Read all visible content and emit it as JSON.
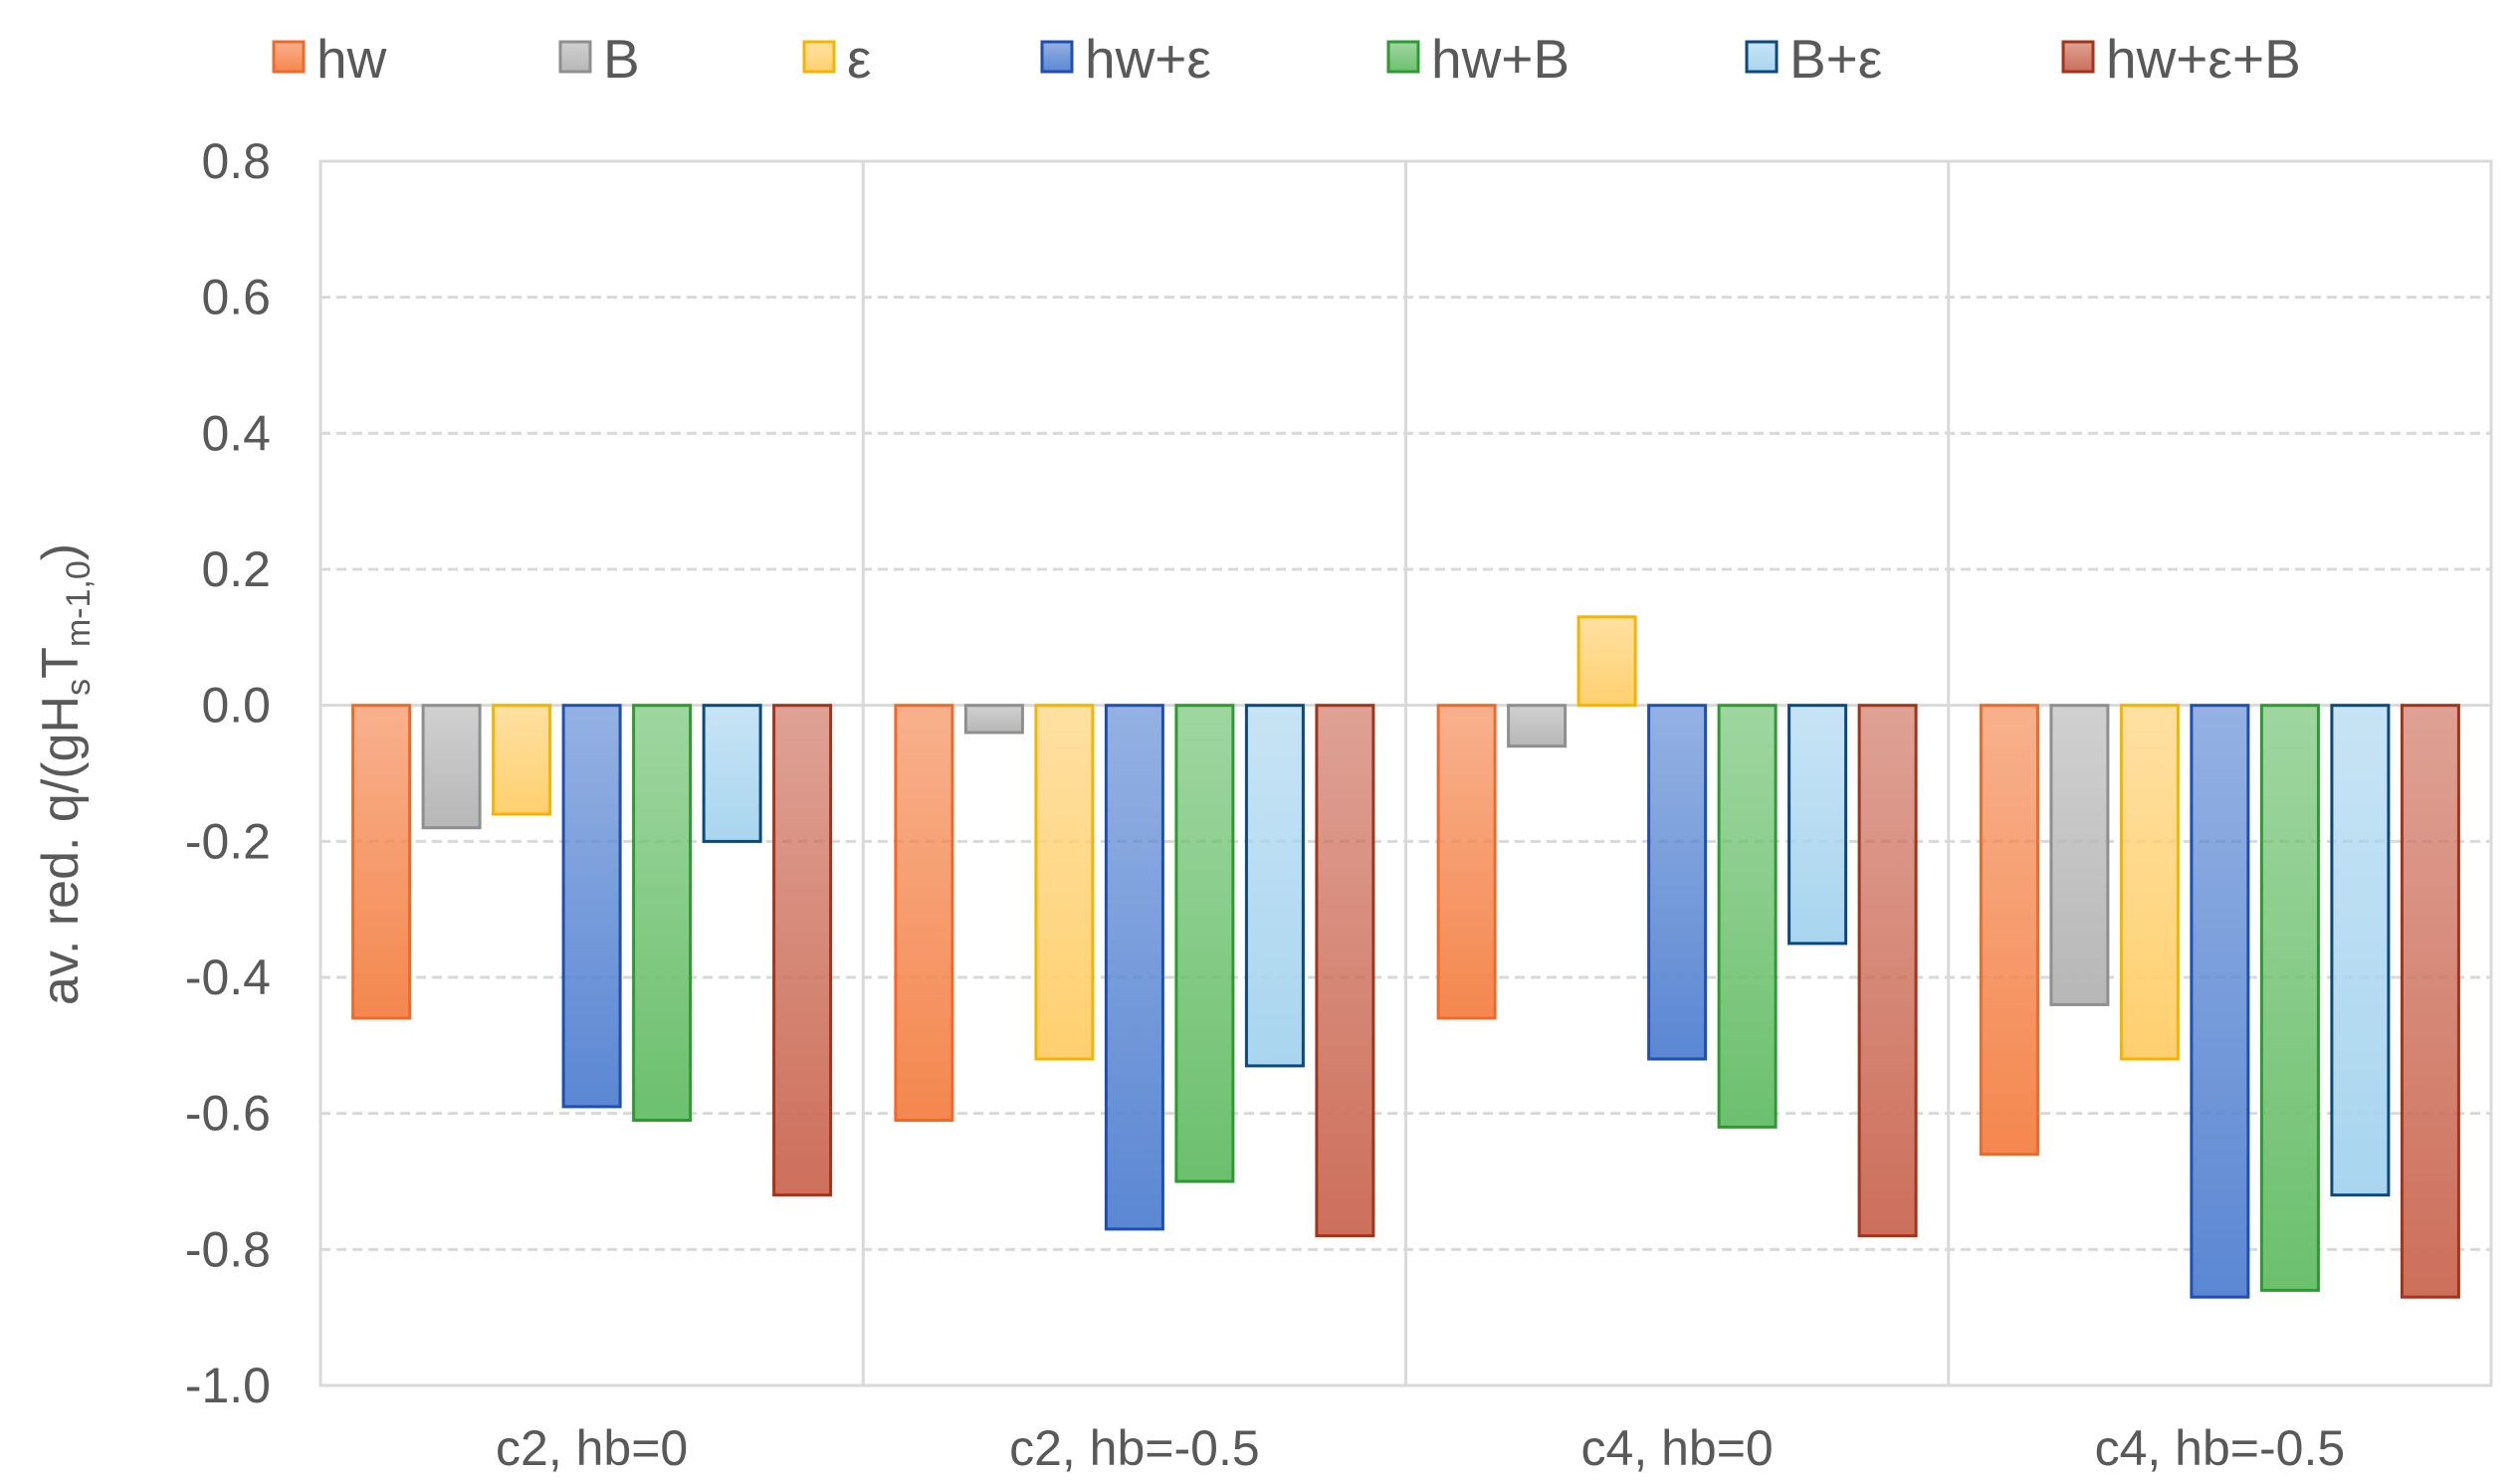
{
  "chart_data": {
    "type": "bar",
    "title": "",
    "xlabel": "",
    "ylabel": {
      "main": "av. red. q/(gH",
      "sub1": "s",
      "mid": "T",
      "sub2": "m-1,0",
      "end": ")"
    },
    "ylim": [
      -1.0,
      0.8
    ],
    "yticks": [
      0.8,
      0.6,
      0.4,
      0.2,
      0.0,
      -0.2,
      -0.4,
      -0.6,
      -0.8,
      -1.0
    ],
    "ytick_labels": [
      "0.8",
      "0.6",
      "0.4",
      "0.2",
      "0.0",
      "-0.2",
      "-0.4",
      "-0.6",
      "-0.8",
      "-1.0"
    ],
    "grid": true,
    "legend_position": "top",
    "categories": [
      "c2, hb=0",
      "c2, hb=-0.5",
      "c4, hb=0",
      "c4, hb=-0.5"
    ],
    "series": [
      {
        "name": "hw",
        "color": "#f4874f",
        "stroke": "#ee6a2a",
        "values": [
          -0.46,
          -0.61,
          -0.46,
          -0.66
        ]
      },
      {
        "name": "B",
        "color": "#b7b7b7",
        "stroke": "#8f8f8f",
        "values": [
          -0.18,
          -0.04,
          -0.06,
          -0.44
        ]
      },
      {
        "name": "ε",
        "color": "#ffd070",
        "stroke": "#f4b400",
        "values": [
          -0.16,
          -0.52,
          0.13,
          -0.52
        ]
      },
      {
        "name": "hw+ε",
        "color": "#5b87d3",
        "stroke": "#1f4fb0",
        "values": [
          -0.59,
          -0.77,
          -0.52,
          -0.87
        ]
      },
      {
        "name": "hw+B",
        "color": "#6cc06e",
        "stroke": "#2e9a32",
        "values": [
          -0.61,
          -0.7,
          -0.62,
          -0.86
        ]
      },
      {
        "name": "B+ε",
        "color": "#a9d5ef",
        "stroke": "#0b4a7e",
        "values": [
          -0.2,
          -0.53,
          -0.35,
          -0.72
        ]
      },
      {
        "name": "hw+ε+B",
        "color": "#cd6f5b",
        "stroke": "#a3331a",
        "values": [
          -0.72,
          -0.78,
          -0.78,
          -0.87
        ]
      }
    ]
  }
}
